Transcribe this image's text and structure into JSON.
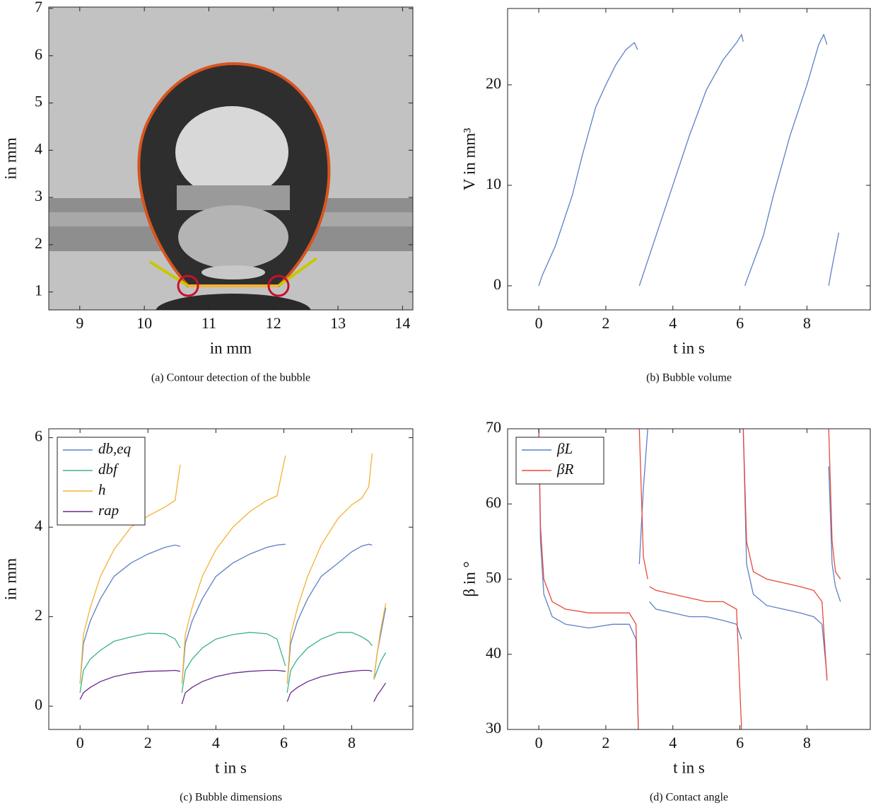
{
  "chart_data": [
    {
      "type": "image",
      "caption": "(a) Contour detection of the bubble",
      "xlabel": "in mm",
      "ylabel": "in mm",
      "xlim": [
        8.52,
        14.16
      ],
      "ylim": [
        0.62,
        7.03
      ],
      "xticks": [
        9,
        10,
        11,
        12,
        13,
        14
      ],
      "yticks": [
        1,
        2,
        3,
        4,
        5,
        6,
        7
      ]
    },
    {
      "type": "line",
      "caption": "(b) Bubble volume",
      "xlabel": "t in s",
      "ylabel": "V in mm³",
      "xlim": [
        -0.93,
        9.89
      ],
      "ylim": [
        -2.4,
        27.6
      ],
      "xticks": [
        0,
        2,
        4,
        6,
        8
      ],
      "yticks": [
        0,
        10,
        20
      ],
      "x": [
        0,
        0.1,
        0.5,
        1,
        1.3,
        1.7,
        2,
        2.3,
        2.6,
        2.85,
        2.95,
        2.97,
        3.0,
        3.05,
        3.5,
        4,
        4.5,
        5,
        5.5,
        5.9,
        6.05,
        6.1,
        6.12,
        6.15,
        6.2,
        6.7,
        7,
        7.5,
        8,
        8.35,
        8.5,
        8.6,
        8.62,
        8.65,
        8.7,
        8.95
      ],
      "series": [
        {
          "name": "V",
          "color": "#5b80c6",
          "values": [
            0,
            1,
            4,
            9,
            13,
            17.8,
            20,
            22,
            23.5,
            24.2,
            23.5,
            null,
            0,
            0.5,
            5,
            10,
            15,
            19.5,
            22.5,
            24.2,
            25,
            24.3,
            null,
            0,
            0.5,
            5,
            9,
            15,
            20,
            24,
            25,
            24,
            null,
            0,
            1,
            5.3
          ]
        }
      ]
    },
    {
      "type": "line",
      "caption": "(c) Bubble dimensions",
      "xlabel": "t in s",
      "ylabel": "in mm",
      "xlim": [
        -0.92,
        9.8
      ],
      "ylim": [
        -0.52,
        6.2
      ],
      "xticks": [
        0,
        2,
        4,
        6,
        8
      ],
      "yticks": [
        0,
        2,
        4,
        6
      ],
      "legend": "upper left",
      "x": [
        0,
        0.1,
        0.3,
        0.6,
        1.0,
        1.5,
        2.0,
        2.5,
        2.8,
        2.95,
        2.97,
        3.0,
        3.1,
        3.3,
        3.6,
        4.0,
        4.5,
        5.0,
        5.5,
        5.8,
        6.05,
        6.08,
        6.1,
        6.2,
        6.4,
        6.7,
        7.1,
        7.6,
        8.0,
        8.3,
        8.5,
        8.6,
        8.62,
        8.65,
        8.75,
        8.85,
        9.0
      ],
      "series": [
        {
          "name": "db,eq",
          "color": "#5b80c6",
          "values": [
            0.5,
            1.4,
            1.9,
            2.4,
            2.9,
            3.2,
            3.4,
            3.55,
            3.6,
            3.57,
            null,
            0.5,
            1.4,
            1.9,
            2.4,
            2.9,
            3.2,
            3.4,
            3.55,
            3.6,
            3.62,
            null,
            0.5,
            1.4,
            1.9,
            2.4,
            2.9,
            3.2,
            3.45,
            3.58,
            3.62,
            3.6,
            null,
            0.6,
            1.2,
            1.6,
            2.2
          ]
        },
        {
          "name": "dbf",
          "color": "#3db28a",
          "values": [
            0.3,
            0.8,
            1.05,
            1.25,
            1.45,
            1.55,
            1.63,
            1.62,
            1.5,
            1.3,
            null,
            0.3,
            0.8,
            1.05,
            1.3,
            1.5,
            1.6,
            1.65,
            1.62,
            1.5,
            0.9,
            null,
            0.3,
            0.8,
            1.05,
            1.3,
            1.5,
            1.65,
            1.65,
            1.55,
            1.45,
            1.35,
            null,
            0.6,
            0.8,
            1.0,
            1.2
          ]
        },
        {
          "name": "h",
          "color": "#f2b233",
          "values": [
            0.5,
            1.6,
            2.2,
            2.9,
            3.5,
            4.0,
            4.25,
            4.45,
            4.6,
            5.4,
            null,
            0.5,
            1.6,
            2.2,
            2.9,
            3.5,
            4.0,
            4.35,
            4.6,
            4.7,
            5.6,
            null,
            0.5,
            1.6,
            2.2,
            2.9,
            3.6,
            4.2,
            4.5,
            4.65,
            4.9,
            5.65,
            null,
            0.6,
            1.2,
            1.7,
            2.3
          ]
        },
        {
          "name": "rap",
          "color": "#6a2a8a",
          "values": [
            0.15,
            0.3,
            0.42,
            0.55,
            0.66,
            0.74,
            0.78,
            0.79,
            0.8,
            0.78,
            null,
            0.05,
            0.3,
            0.42,
            0.55,
            0.66,
            0.74,
            0.78,
            0.8,
            0.8,
            0.78,
            null,
            0.1,
            0.3,
            0.42,
            0.55,
            0.66,
            0.74,
            0.78,
            0.8,
            0.8,
            0.78,
            null,
            0.1,
            0.25,
            0.35,
            0.52
          ]
        }
      ]
    },
    {
      "type": "line",
      "caption": "(d) Contact angle",
      "xlabel": "t in s",
      "ylabel": "β in °",
      "xlim": [
        -0.93,
        9.89
      ],
      "ylim": [
        30,
        70
      ],
      "xticks": [
        0,
        2,
        4,
        6,
        8
      ],
      "yticks": [
        30,
        40,
        50,
        60,
        70
      ],
      "legend": "upper left",
      "x": [
        0,
        0.05,
        0.15,
        0.4,
        0.8,
        1.5,
        2.2,
        2.7,
        2.9,
        2.97,
        2.99,
        3.0,
        3.12,
        3.25,
        3.27,
        3.3,
        3.5,
        4.0,
        4.5,
        5.0,
        5.5,
        5.9,
        6.05,
        6.08,
        6.1,
        6.2,
        6.4,
        6.8,
        7.3,
        7.8,
        8.2,
        8.45,
        8.6,
        8.62,
        8.65,
        8.75,
        8.85,
        9.0
      ],
      "series": [
        {
          "name": "βL",
          "color": "#5b80c6",
          "values": [
            70,
            55,
            48,
            45,
            44,
            43.5,
            44,
            44,
            42,
            30,
            null,
            52,
            62,
            70,
            null,
            47,
            46,
            45.5,
            45,
            45,
            44.5,
            44,
            42,
            null,
            70,
            52,
            48,
            46.5,
            46,
            45.5,
            45,
            44,
            37,
            null,
            65,
            52,
            49,
            47
          ]
        },
        {
          "name": "βR",
          "color": "#e8483d",
          "values": [
            70,
            57,
            50,
            47,
            46,
            45.5,
            45.5,
            45.5,
            44,
            30,
            null,
            70,
            53,
            50,
            null,
            49,
            48.5,
            48,
            47.5,
            47,
            47,
            46,
            30,
            null,
            70,
            55,
            51,
            50,
            49.5,
            49,
            48.5,
            47,
            36.5,
            null,
            70,
            55,
            51,
            50
          ]
        }
      ]
    }
  ]
}
